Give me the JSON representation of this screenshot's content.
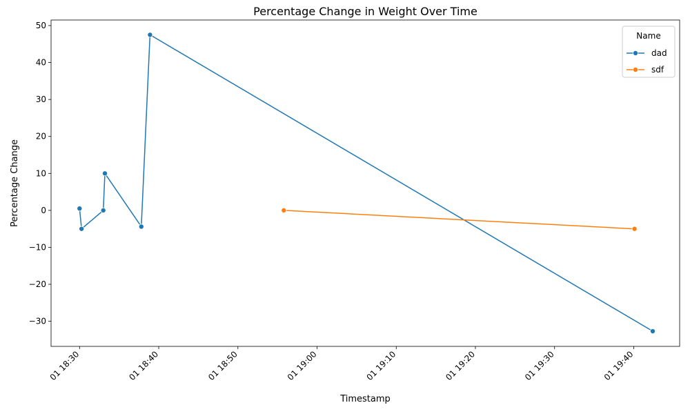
{
  "chart_data": {
    "type": "line",
    "title": "Percentage Change in Weight Over Time",
    "xlabel": "Timestamp",
    "ylabel": "Percentage Change",
    "x_unit": "minutes after 18:30",
    "xlim": [
      -3.6,
      75.8
    ],
    "ylim": [
      -36.8,
      51.5
    ],
    "x_ticks": [
      {
        "value": 0,
        "label": "01 18:30"
      },
      {
        "value": 10,
        "label": "01 18:40"
      },
      {
        "value": 20,
        "label": "01 18:50"
      },
      {
        "value": 30,
        "label": "01 19:00"
      },
      {
        "value": 40,
        "label": "01 19:10"
      },
      {
        "value": 50,
        "label": "01 19:20"
      },
      {
        "value": 60,
        "label": "01 19:30"
      },
      {
        "value": 70,
        "label": "01 19:40"
      }
    ],
    "y_ticks": [
      {
        "value": -30,
        "label": "−30"
      },
      {
        "value": -20,
        "label": "−20"
      },
      {
        "value": -10,
        "label": "−10"
      },
      {
        "value": 0,
        "label": "0"
      },
      {
        "value": 10,
        "label": "10"
      },
      {
        "value": 20,
        "label": "20"
      },
      {
        "value": 30,
        "label": "30"
      },
      {
        "value": 40,
        "label": "40"
      },
      {
        "value": 50,
        "label": "50"
      }
    ],
    "legend": {
      "title": "Name",
      "position": "top-right"
    },
    "series": [
      {
        "name": "dad",
        "color": "#1f77b4",
        "points": [
          {
            "x": 0.0,
            "y": 0.5
          },
          {
            "x": 0.25,
            "y": -5.0
          },
          {
            "x": 3.0,
            "y": 0.0
          },
          {
            "x": 3.2,
            "y": 10.0
          },
          {
            "x": 7.8,
            "y": -4.4
          },
          {
            "x": 8.9,
            "y": 47.5
          },
          {
            "x": 72.4,
            "y": -32.7
          }
        ]
      },
      {
        "name": "sdf",
        "color": "#ff7f0e",
        "points": [
          {
            "x": 25.8,
            "y": 0.0
          },
          {
            "x": 70.1,
            "y": -5.0
          }
        ]
      }
    ]
  }
}
